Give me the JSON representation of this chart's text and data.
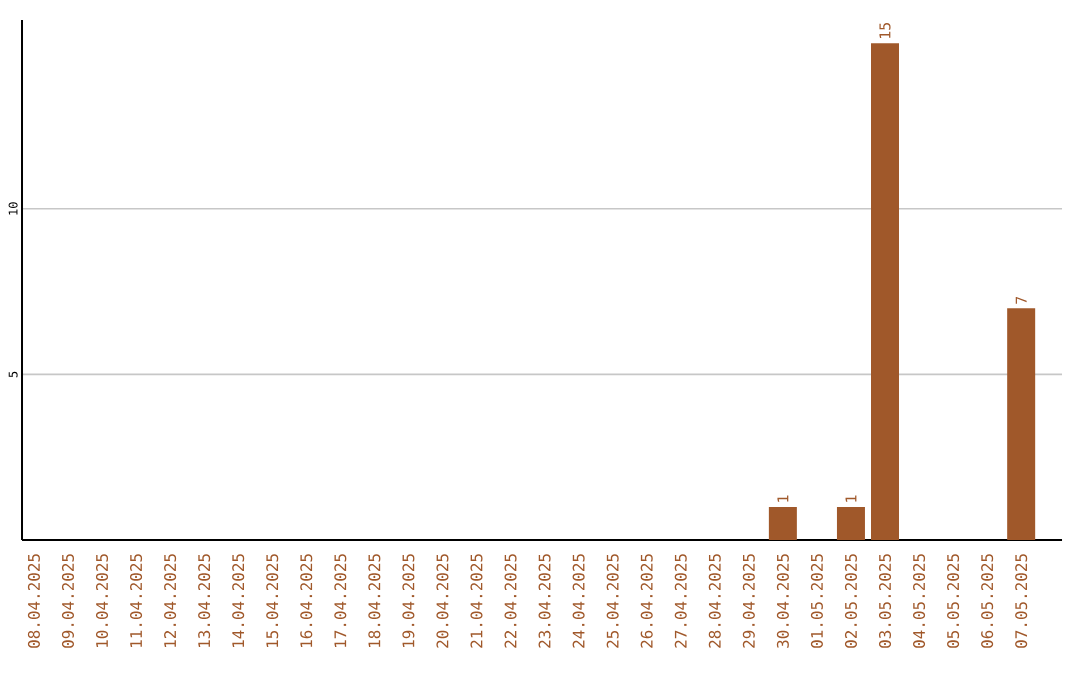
{
  "chart_data": {
    "type": "bar",
    "categories": [
      "08.04.2025",
      "09.04.2025",
      "10.04.2025",
      "11.04.2025",
      "12.04.2025",
      "13.04.2025",
      "14.04.2025",
      "15.04.2025",
      "16.04.2025",
      "17.04.2025",
      "18.04.2025",
      "19.04.2025",
      "20.04.2025",
      "21.04.2025",
      "22.04.2025",
      "23.04.2025",
      "24.04.2025",
      "25.04.2025",
      "26.04.2025",
      "27.04.2025",
      "28.04.2025",
      "29.04.2025",
      "30.04.2025",
      "01.05.2025",
      "02.05.2025",
      "03.05.2025",
      "04.05.2025",
      "05.05.2025",
      "06.05.2025",
      "07.05.2025"
    ],
    "values": [
      0,
      0,
      0,
      0,
      0,
      0,
      0,
      0,
      0,
      0,
      0,
      0,
      0,
      0,
      0,
      0,
      0,
      0,
      0,
      0,
      0,
      0,
      1,
      0,
      1,
      15,
      0,
      0,
      0,
      7
    ],
    "value_labels": [
      null,
      null,
      null,
      null,
      null,
      null,
      null,
      null,
      null,
      null,
      null,
      null,
      null,
      null,
      null,
      null,
      null,
      null,
      null,
      null,
      null,
      null,
      "1",
      null,
      "1",
      "15",
      null,
      null,
      null,
      "7"
    ],
    "color": "#a0582a",
    "ylim": [
      0,
      15.7
    ],
    "yticks": [
      5,
      10
    ],
    "grid": "y"
  }
}
